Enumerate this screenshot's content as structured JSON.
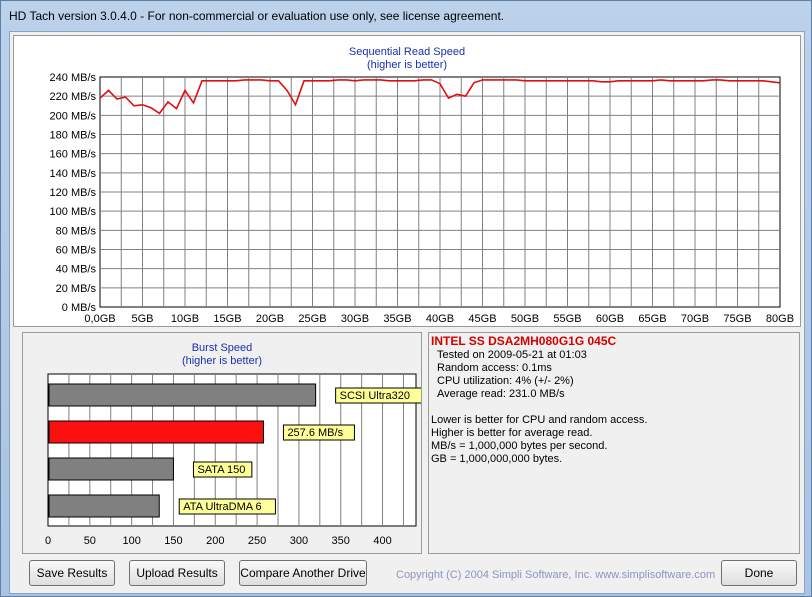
{
  "window": {
    "title": "HD Tach version 3.0.4.0  - For non-commercial or evaluation use only, see license agreement."
  },
  "read_chart": {
    "title": "Sequential Read Speed",
    "subtitle": "(higher is better)"
  },
  "burst_chart": {
    "title": "Burst Speed",
    "subtitle": "(higher is better)"
  },
  "drive": {
    "name": "INTEL SS DSA2MH080G1G 045C",
    "tested_on": "Tested on 2009-05-21 at 01:03",
    "random_access": "Random access: 0.1ms",
    "cpu_utilization": "CPU utilization: 4% (+/- 2%)",
    "average_read": "Average read: 231.0 MB/s"
  },
  "notes": [
    "Lower is better for CPU and random access.",
    "Higher is better for average read.",
    "MB/s = 1,000,000 bytes per second.",
    "GB = 1,000,000,000 bytes."
  ],
  "buttons": {
    "save_results": "Save Results",
    "upload_results": "Upload Results",
    "compare_drive": "Compare Another Drive",
    "done": "Done"
  },
  "copyright": "Copyright (C) 2004 Simpli Software, Inc. www.simplisoftware.com",
  "chart_data": [
    {
      "type": "line",
      "title": "Sequential Read Speed",
      "subtitle": "(higher is better)",
      "x_ticks": [
        "0,0GB",
        "5GB",
        "10GB",
        "15GB",
        "20GB",
        "25GB",
        "30GB",
        "35GB",
        "40GB",
        "45GB",
        "50GB",
        "55GB",
        "60GB",
        "65GB",
        "70GB",
        "75GB",
        "80GB"
      ],
      "y_ticks": [
        "0 MB/s",
        "20 MB/s",
        "40 MB/s",
        "60 MB/s",
        "80 MB/s",
        "100 MB/s",
        "120 MB/s",
        "140 MB/s",
        "160 MB/s",
        "180 MB/s",
        "200 MB/s",
        "220 MB/s",
        "240 MB/s"
      ],
      "xlim": [
        0,
        80
      ],
      "ylim": [
        0,
        240
      ],
      "grid": true,
      "line_color": "#e01010",
      "series": [
        {
          "x": [
            0,
            1,
            2,
            3,
            4,
            5,
            6,
            7,
            8,
            9,
            10,
            11,
            12,
            13,
            14,
            15,
            16,
            17,
            18,
            19,
            20,
            21,
            22,
            23,
            24,
            25,
            26,
            27,
            28,
            29,
            30,
            31,
            32,
            33,
            34,
            35,
            36,
            37,
            38,
            39,
            40,
            41,
            42,
            43,
            44,
            45,
            46,
            47,
            48,
            49,
            50,
            51,
            52,
            53,
            54,
            55,
            56,
            57,
            58,
            59,
            60,
            61,
            62,
            63,
            64,
            65,
            66,
            67,
            68,
            69,
            70,
            71,
            72,
            73,
            74,
            75,
            76,
            77,
            78,
            79,
            80
          ],
          "values": [
            218,
            226,
            217,
            219,
            210,
            211,
            208,
            202,
            214,
            207,
            226,
            213,
            236,
            236,
            236,
            236,
            236,
            237,
            237,
            237,
            236,
            236,
            226,
            211,
            236,
            236,
            236,
            236,
            237,
            237,
            236,
            237,
            237,
            237,
            236,
            236,
            236,
            236,
            237,
            237,
            233,
            218,
            222,
            220,
            234,
            237,
            237,
            237,
            237,
            237,
            236,
            236,
            236,
            236,
            236,
            236,
            236,
            236,
            236,
            235,
            235,
            236,
            236,
            236,
            236,
            236,
            237,
            236,
            236,
            236,
            236,
            236,
            237,
            237,
            236,
            236,
            236,
            236,
            236,
            235,
            234
          ]
        }
      ]
    },
    {
      "type": "bar",
      "title": "Burst Speed",
      "subtitle": "(higher is better)",
      "orientation": "horizontal",
      "x_ticks": [
        "0",
        "50",
        "100",
        "150",
        "200",
        "250",
        "300",
        "350",
        "400"
      ],
      "xlim": [
        0,
        440
      ],
      "grid": true,
      "bars": [
        {
          "label": "SCSI Ultra320",
          "value": 320,
          "color": "#808080"
        },
        {
          "label": "257.6 MB/s",
          "value": 257.6,
          "color": "#ff1010"
        },
        {
          "label": "SATA 150",
          "value": 150,
          "color": "#808080"
        },
        {
          "label": "ATA UltraDMA 6",
          "value": 133,
          "color": "#808080"
        }
      ]
    }
  ]
}
